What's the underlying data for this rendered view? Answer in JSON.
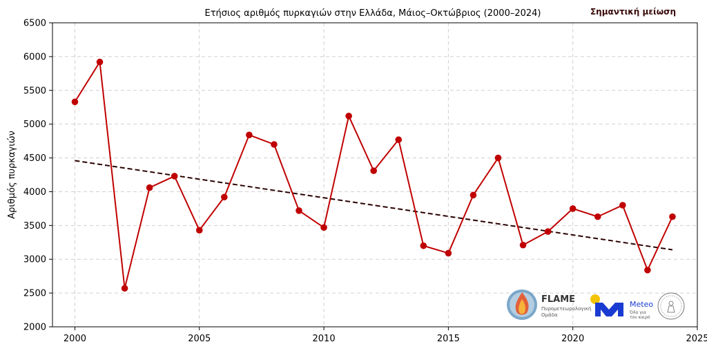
{
  "chart_data": {
    "type": "line",
    "title": "Ετήσιος αριθμός πυρκαγιών στην Ελλάδα, Μάιος–Οκτώβριος (2000–2024)",
    "annotation": "Σημαντική μείωση",
    "xlabel": "",
    "ylabel": "Αριθμός πυρκαγιών",
    "xlim": [
      1999.1,
      2025
    ],
    "ylim": [
      2000,
      6500
    ],
    "xticks": [
      2000,
      2005,
      2010,
      2015,
      2020,
      2025
    ],
    "yticks": [
      2000,
      2500,
      3000,
      3500,
      4000,
      4500,
      5000,
      5500,
      6000,
      6500
    ],
    "grid": true,
    "series": [
      {
        "color": "#c00000",
        "x": [
          2000,
          2001,
          2002,
          2003,
          2004,
          2005,
          2006,
          2007,
          2008,
          2009,
          2010,
          2011,
          2012,
          2013,
          2014,
          2015,
          2016,
          2017,
          2018,
          2019,
          2020,
          2021,
          2022,
          2023,
          2024
        ],
        "y": [
          5330,
          5920,
          2570,
          4060,
          4230,
          3430,
          3920,
          4840,
          4700,
          3720,
          3470,
          5120,
          4310,
          4770,
          3200,
          3090,
          3950,
          4500,
          3210,
          3410,
          3750,
          3630,
          3800,
          2840,
          3630
        ]
      }
    ],
    "trend": {
      "color": "#2a0000",
      "style": "dashed",
      "x": [
        2000,
        2024
      ],
      "y": [
        4460,
        3140
      ]
    }
  },
  "logos": {
    "flame": {
      "name": "FLAME",
      "line1": "Πυρομετεωρολογική",
      "line2": "Ομάδα"
    },
    "meteo": {
      "name": "Meteo",
      "line1": "Όλα για",
      "line2": "τον καιρό"
    }
  }
}
